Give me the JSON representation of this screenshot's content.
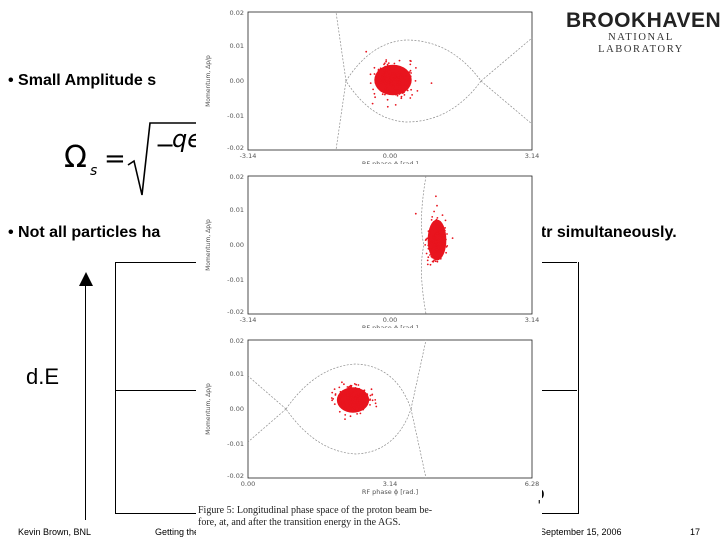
{
  "logo": {
    "main": "BROOKHAVEN",
    "sub": "NATIONAL LABORATORY"
  },
  "bullets": [
    {
      "text": "• Small Amplitude s"
    },
    {
      "text": "• Not all particles ha",
      "tail": "γtr simultaneously."
    }
  ],
  "formula": {
    "lhs": "Ω",
    "sub": "s",
    "eq": "=",
    "sign": "−",
    "frag": "qe"
  },
  "diagram": {
    "y_label": "d.E",
    "x_label": "ϕ"
  },
  "plots": [
    {
      "ylabel": "Momentum, Δp/p",
      "xlabel": "RF phase ϕ [rad.]",
      "yticks": [
        "0.02",
        "0.01",
        "0.00",
        "-0.01",
        "-0.02"
      ],
      "xticks": [
        "-3.14",
        "0.00",
        "3.14"
      ]
    },
    {
      "ylabel": "Momentum, Δp/p",
      "xlabel": "RF phase ϕ [rad.]",
      "yticks": [
        "0.02",
        "0.01",
        "0.00",
        "-0.01",
        "-0.02"
      ],
      "xticks": [
        "-3.14",
        "0.00",
        "3.14"
      ]
    },
    {
      "ylabel": "Momentum, Δp/p",
      "xlabel": "RF phase ϕ [rad.]",
      "yticks": [
        "0.02",
        "0.01",
        "0.00",
        "-0.01",
        "-0.02"
      ],
      "xticks": [
        "0.00",
        "3.14",
        "6.28"
      ]
    }
  ],
  "caption": {
    "line1": "Figure 5: Longitudinal phase space of the proton beam be-",
    "line2": "fore, at, and after the transition energy in the AGS."
  },
  "footer": {
    "author": "Kevin Brown, BNL",
    "title": "Getting the Beam Past Transition",
    "date": "September 15, 2006",
    "page": "17"
  },
  "colors": {
    "beam": "#e8141e",
    "separatrix": "#8c8c8c",
    "text": "#000000"
  }
}
